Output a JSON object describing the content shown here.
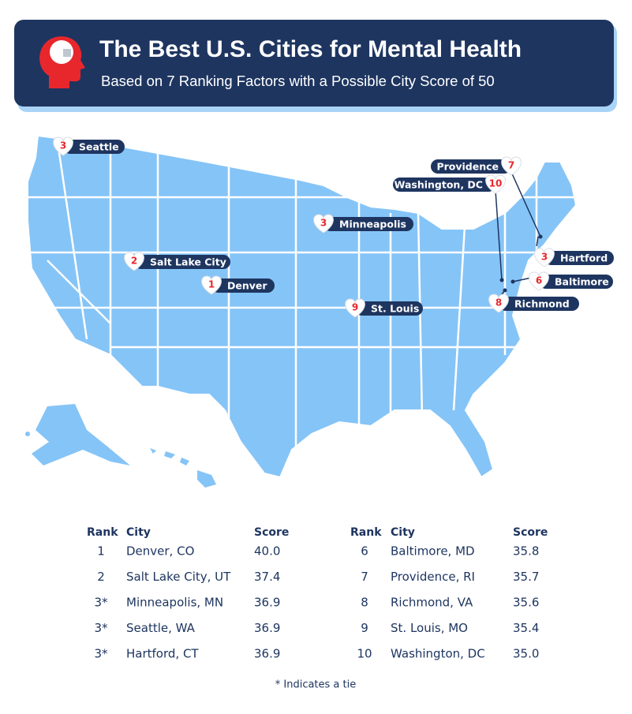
{
  "header": {
    "title": "The Best U.S. Cities for Mental Health",
    "subtitle": "Based on 7 Ranking Factors with a Possible City Score of 50"
  },
  "map_labels": [
    {
      "rank": "3",
      "city": "Seattle"
    },
    {
      "rank": "2",
      "city": "Salt Lake City"
    },
    {
      "rank": "1",
      "city": "Denver"
    },
    {
      "rank": "3",
      "city": "Minneapolis"
    },
    {
      "rank": "9",
      "city": "St. Louis"
    },
    {
      "rank": "7",
      "city": "Providence"
    },
    {
      "rank": "10",
      "city": "Washington, DC"
    },
    {
      "rank": "3",
      "city": "Hartford"
    },
    {
      "rank": "6",
      "city": "Baltimore"
    },
    {
      "rank": "8",
      "city": "Richmond"
    }
  ],
  "table": {
    "columns": [
      "Rank",
      "City",
      "Score"
    ],
    "rows": [
      [
        "1",
        "Denver, CO",
        "40.0"
      ],
      [
        "2",
        "Salt Lake City, UT",
        "37.4"
      ],
      [
        "3*",
        "Minneapolis, MN",
        "36.9"
      ],
      [
        "3*",
        "Seattle, WA",
        "36.9"
      ],
      [
        "3*",
        "Hartford, CT",
        "36.9"
      ],
      [
        "6",
        "Baltimore, MD",
        "35.8"
      ],
      [
        "7",
        "Providence, RI",
        "35.7"
      ],
      [
        "8",
        "Richmond, VA",
        "35.6"
      ],
      [
        "9",
        "St. Louis, MO",
        "35.4"
      ],
      [
        "10",
        "Washington, DC",
        "35.0"
      ]
    ]
  },
  "footnote": "* Indicates a tie"
}
